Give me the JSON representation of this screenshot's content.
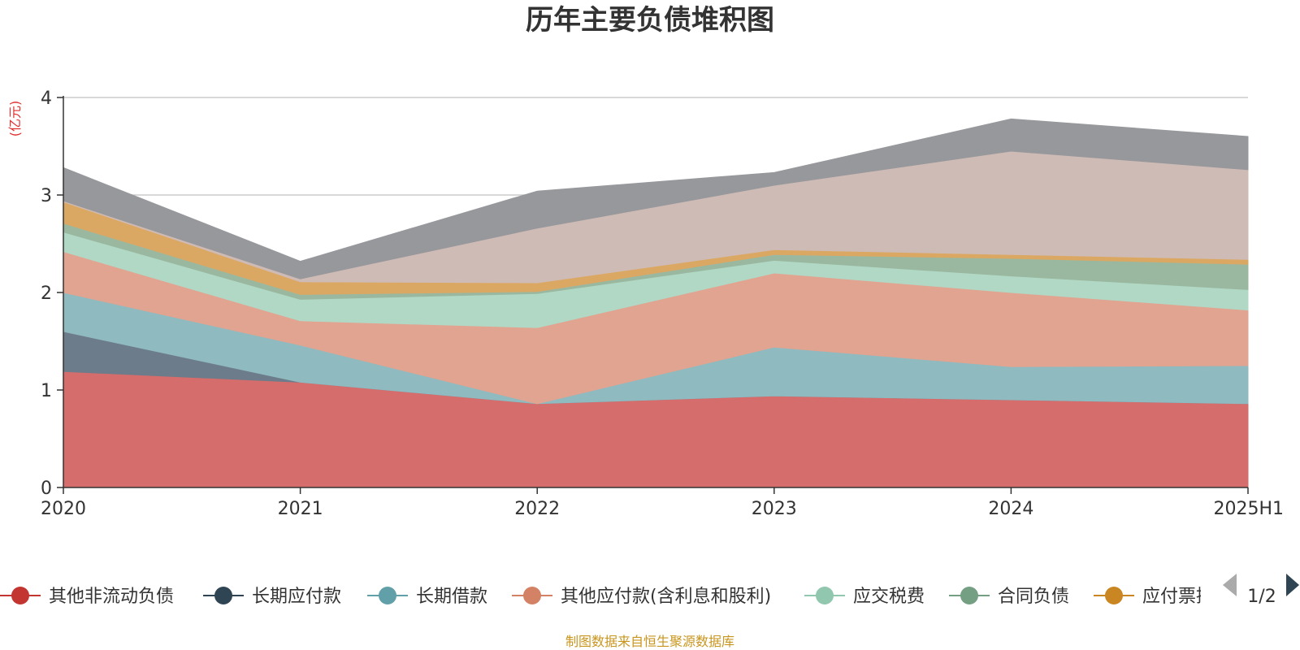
{
  "chart_data": {
    "type": "area",
    "stacked": true,
    "title": "历年主要负债堆积图",
    "y_unit": "(亿元)",
    "x": [
      "2020",
      "2021",
      "2022",
      "2023",
      "2024",
      "2025H1"
    ],
    "ylim": [
      0,
      4
    ],
    "yticks": [
      "0",
      "1",
      "2",
      "3",
      "4"
    ],
    "series": [
      {
        "name": "其他非流动负债",
        "color": "#d46d6b",
        "legend_color": "#c23531",
        "values": [
          1.19,
          1.08,
          0.86,
          0.94,
          0.9,
          0.86
        ],
        "in_legend": true
      },
      {
        "name": "长期应付款",
        "color": "#6c7c8a",
        "legend_color": "#2f4554",
        "values": [
          0.41,
          0.0,
          0.0,
          0.0,
          0.0,
          0.0
        ],
        "in_legend": true
      },
      {
        "name": "长期借款",
        "color": "#8fbac0",
        "legend_color": "#61a0a8",
        "values": [
          0.4,
          0.38,
          0.0,
          0.5,
          0.34,
          0.39
        ],
        "in_legend": true
      },
      {
        "name": "其他应付款(含利息和股利)",
        "color": "#e0a490",
        "legend_color": "#d48265",
        "values": [
          0.42,
          0.25,
          0.78,
          0.76,
          0.76,
          0.57
        ],
        "in_legend": true
      },
      {
        "name": "应交税费",
        "color": "#b1d8c5",
        "legend_color": "#91c7ae",
        "values": [
          0.2,
          0.22,
          0.35,
          0.13,
          0.17,
          0.21
        ],
        "in_legend": true
      },
      {
        "name": "合同负债",
        "color": "#9ab8a0",
        "legend_color": "#749f83",
        "values": [
          0.09,
          0.05,
          0.02,
          0.06,
          0.18,
          0.26
        ],
        "in_legend": true
      },
      {
        "name": "应付票据",
        "color": "#dba864",
        "legend_color": "#ca8622",
        "values": [
          0.22,
          0.13,
          0.09,
          0.05,
          0.04,
          0.05
        ],
        "in_legend": true
      },
      {
        "name": "",
        "color": "#cfbbb5",
        "legend_color": "#bda29a",
        "values": [
          0.01,
          0.03,
          0.56,
          0.66,
          1.06,
          0.92
        ],
        "in_legend": false
      },
      {
        "name": "",
        "color": "#97989c",
        "legend_color": "#6e7074",
        "values": [
          0.34,
          0.18,
          0.38,
          0.13,
          0.33,
          0.34
        ],
        "in_legend": false
      }
    ]
  },
  "legend": {
    "page_label": "1/2",
    "prev_icon": "triangle-left-icon",
    "next_icon": "triangle-right-icon",
    "truncated_last_label": "应付票据"
  },
  "footer": {
    "source": "制图数据来自恒生聚源数据库"
  }
}
